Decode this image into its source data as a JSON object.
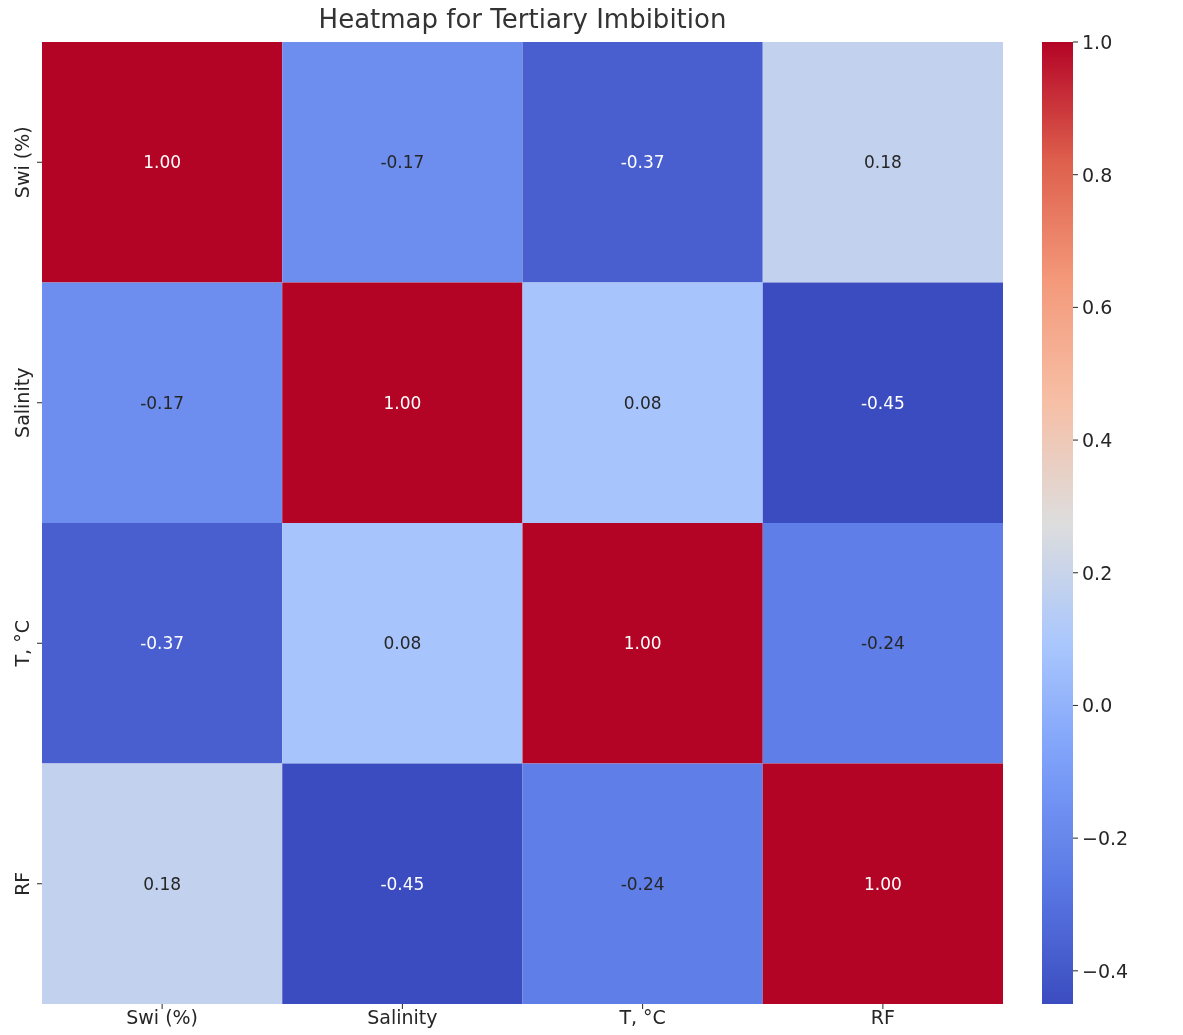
{
  "chart_data": {
    "type": "heatmap",
    "title": "Heatmap for Tertiary Imbibition",
    "categories": [
      "Swi (%)",
      "Salinity",
      "T, °C",
      "RF"
    ],
    "y_categories": [
      "Swi (%)",
      "Salinity",
      "T, °C",
      "RF"
    ],
    "cells": [
      [
        1.0,
        -0.17,
        -0.37,
        0.18
      ],
      [
        -0.17,
        1.0,
        0.08,
        -0.45
      ],
      [
        -0.37,
        0.08,
        1.0,
        -0.24
      ],
      [
        0.18,
        -0.45,
        -0.24,
        1.0
      ]
    ],
    "cell_labels": [
      [
        "1.00",
        "-0.17",
        "-0.37",
        "0.18"
      ],
      [
        "-0.17",
        "1.00",
        "0.08",
        "-0.45"
      ],
      [
        "-0.37",
        "0.08",
        "1.00",
        "-0.24"
      ],
      [
        "0.18",
        "-0.45",
        "-0.24",
        "1.00"
      ]
    ],
    "clim": [
      -0.45,
      1.0
    ],
    "cticks": [
      {
        "value": -0.4,
        "label": "−0.4"
      },
      {
        "value": -0.2,
        "label": "−0.2"
      },
      {
        "value": 0,
        "label": "0.0"
      },
      {
        "value": 0.2,
        "label": "0.2"
      },
      {
        "value": 0.4,
        "label": "0.4"
      },
      {
        "value": 0.6,
        "label": "0.6"
      },
      {
        "value": 0.8,
        "label": "0.8"
      },
      {
        "value": 1.0,
        "label": "1.0"
      }
    ]
  }
}
